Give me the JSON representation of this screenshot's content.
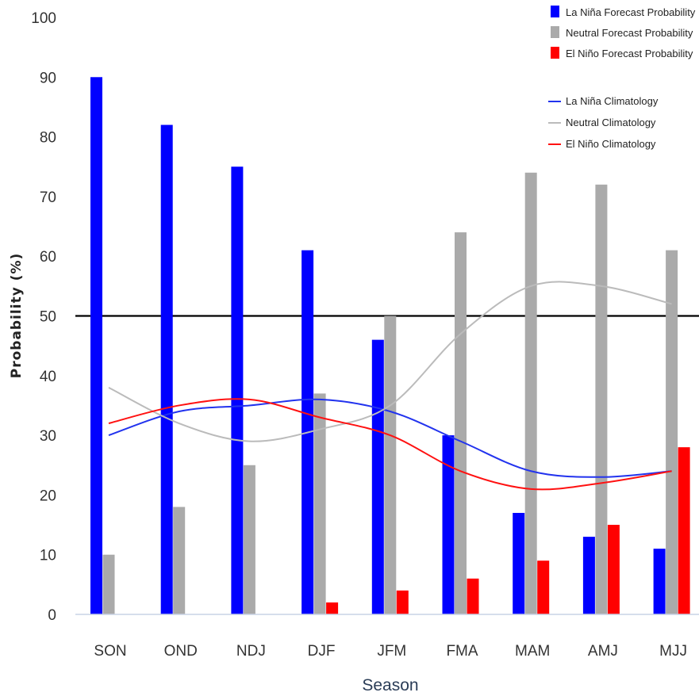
{
  "chart_data": {
    "type": "bar",
    "title": "",
    "xlabel": "Season",
    "ylabel": "Probability (%)",
    "ylim": [
      0,
      100
    ],
    "yticks": [
      0,
      10,
      20,
      30,
      40,
      50,
      60,
      70,
      80,
      90,
      100
    ],
    "reference_line": 50,
    "categories": [
      "SON",
      "OND",
      "NDJ",
      "DJF",
      "JFM",
      "FMA",
      "MAM",
      "AMJ",
      "MJJ"
    ],
    "series": [
      {
        "name": "La Niña Forecast Probability",
        "kind": "bar",
        "color": "#0000ff",
        "values": [
          90,
          82,
          75,
          61,
          46,
          30,
          17,
          13,
          11
        ]
      },
      {
        "name": "Neutral Forecast Probability",
        "kind": "bar",
        "color": "#aaaaaa",
        "values": [
          10,
          18,
          25,
          37,
          50,
          64,
          74,
          72,
          61
        ]
      },
      {
        "name": "El Niño Forecast Probability",
        "kind": "bar",
        "color": "#ff0000",
        "values": [
          0,
          0,
          0,
          2,
          4,
          6,
          9,
          15,
          28
        ]
      },
      {
        "name": "La Niña Climatology",
        "kind": "line",
        "color": "#2233ee",
        "values": [
          30,
          34,
          35,
          36,
          34,
          29,
          24,
          23,
          24
        ]
      },
      {
        "name": "Neutral Climatology",
        "kind": "line",
        "color": "#bbbbbb",
        "values": [
          38,
          32,
          29,
          31,
          35,
          47,
          55,
          55,
          52
        ]
      },
      {
        "name": "El Niño Climatology",
        "kind": "line",
        "color": "#ff1111",
        "values": [
          32,
          35,
          36,
          33,
          30,
          24,
          21,
          22,
          24
        ]
      }
    ],
    "legend": "top-right",
    "grid": false
  }
}
